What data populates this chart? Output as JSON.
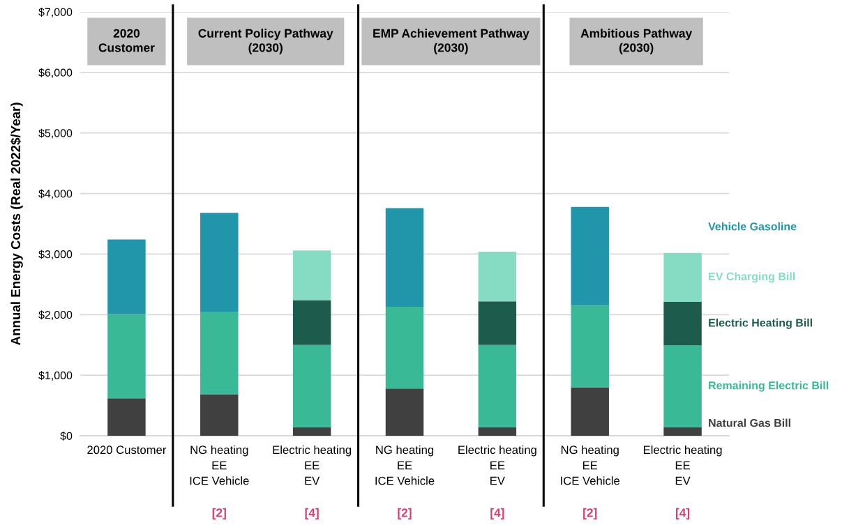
{
  "chart_data": {
    "type": "bar",
    "stacked": true,
    "ylabel": "Annual Energy Costs (Real 2022$/Year)",
    "categories": [
      "2020 Customer",
      "NG heating\nEE\nICE Vehicle",
      "Electric heating\nEE\nEV",
      "NG heating\nEE\nICE Vehicle",
      "Electric heating\nEE\nEV",
      "NG heating\nEE\nICE Vehicle",
      "Electric heating\nEE\nEV"
    ],
    "series": [
      {
        "name": "Natural Gas Bill",
        "color": "#404040",
        "values": [
          620,
          680,
          140,
          780,
          140,
          800,
          140
        ]
      },
      {
        "name": "Remaining Electric Bill",
        "color": "#3ab996",
        "values": [
          1390,
          1370,
          1360,
          1350,
          1360,
          1350,
          1350
        ]
      },
      {
        "name": "Electric Heating Bill",
        "color": "#1d5c4d",
        "values": [
          null,
          null,
          740,
          null,
          720,
          null,
          720
        ]
      },
      {
        "name": "EV Charging Bill",
        "color": "#86dcc3",
        "values": [
          null,
          null,
          820,
          null,
          820,
          null,
          810
        ]
      },
      {
        "name": "Vehicle Gasoline",
        "color": "#2196aa",
        "values": [
          1230,
          1630,
          null,
          1630,
          null,
          1630,
          null
        ]
      }
    ],
    "ylim": [
      0,
      7000
    ],
    "yticks": [
      {
        "value": 0,
        "label": "$0"
      },
      {
        "value": 1000,
        "label": "$1,000"
      },
      {
        "value": 2000,
        "label": "$2,000"
      },
      {
        "value": 3000,
        "label": "$3,000"
      },
      {
        "value": 4000,
        "label": "$4,000"
      },
      {
        "value": 5000,
        "label": "$5,000"
      },
      {
        "value": 6000,
        "label": "$6,000"
      },
      {
        "value": 7000,
        "label": "$7,000"
      }
    ],
    "grid": "y",
    "annotations": [
      "2020\nCustomer",
      "Current Policy Pathway\n(2030)",
      "EMP Achievement Pathway\n(2030)",
      "Ambitious Pathway\n(2030)",
      "[2]",
      "[4]",
      "[2]",
      "[4]",
      "[2]",
      "[4]"
    ]
  }
}
